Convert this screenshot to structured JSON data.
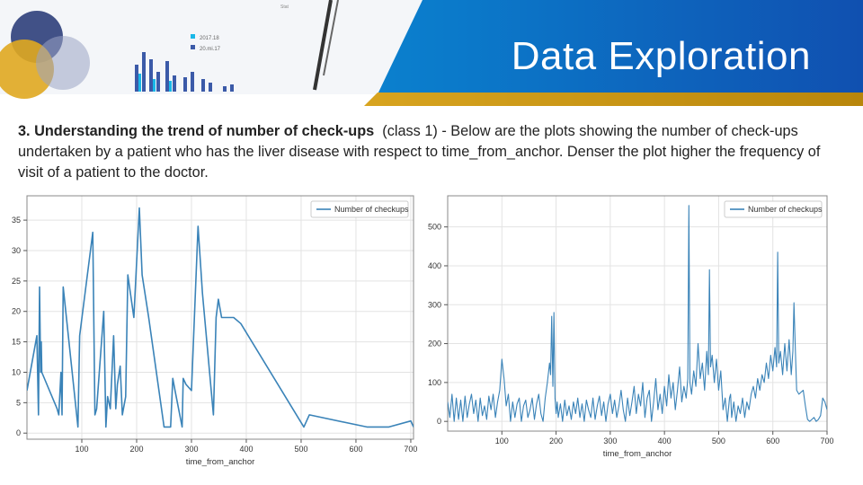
{
  "slide": {
    "title": "Data Exploration",
    "heading_bold": "3. Understanding the trend of number of check-ups",
    "heading_suffix": "(class 1)",
    "body": " - Below are the plots showing the number of check-ups undertaken by a patient who has the liver disease with respect to time_from_anchor. Denser the plot higher the frequency of visit of a patient to the doctor.",
    "deco_label_1": "2017.18",
    "deco_label_2": "20.mi.17",
    "deco_corner": "Stat"
  },
  "colors": {
    "line": "#3a83b8",
    "grid": "#e3e3e3",
    "axis": "#888888"
  },
  "chart_data": [
    {
      "type": "line",
      "xlabel": "time_from_anchor",
      "ylabel": "",
      "xlim": [
        0,
        705
      ],
      "ylim": [
        -1,
        39
      ],
      "xticks": [
        100,
        200,
        300,
        400,
        500,
        600,
        700
      ],
      "yticks": [
        0,
        5,
        10,
        15,
        20,
        25,
        30,
        35
      ],
      "grid": true,
      "legend_position": "top-right",
      "series": [
        {
          "name": "Number of checkups",
          "x": [
            0,
            18,
            21,
            23,
            25,
            26,
            27,
            55,
            58,
            62,
            64,
            66,
            93,
            96,
            120,
            124,
            127,
            140,
            144,
            147,
            152,
            158,
            162,
            165,
            170,
            174,
            180,
            184,
            195,
            205,
            210,
            222,
            250,
            262,
            266,
            270,
            283,
            285,
            290,
            300,
            312,
            320,
            340,
            345,
            349,
            355,
            365,
            377,
            390,
            505,
            515,
            620,
            660,
            700,
            705
          ],
          "y": [
            7,
            16,
            3,
            24,
            10,
            15,
            10,
            4,
            3,
            10,
            3,
            24,
            1,
            16,
            33,
            3,
            4,
            20,
            1,
            6,
            4,
            16,
            4,
            8,
            11,
            3,
            6,
            26,
            19,
            37,
            26,
            19,
            1,
            1,
            9,
            7,
            1,
            9,
            8,
            7,
            34,
            23,
            3,
            19,
            22,
            19,
            19,
            19,
            18,
            1,
            3,
            1,
            1,
            2,
            1
          ]
        }
      ]
    },
    {
      "type": "line",
      "xlabel": "time_from_anchor",
      "ylabel": "",
      "xlim": [
        0,
        700
      ],
      "ylim": [
        -25,
        580
      ],
      "xticks": [
        100,
        200,
        300,
        400,
        500,
        600,
        700
      ],
      "yticks": [
        0,
        100,
        200,
        300,
        400,
        500
      ],
      "grid": true,
      "legend_position": "top-right",
      "series": [
        {
          "name": "Number of checkups",
          "x": [
            0,
            4,
            8,
            12,
            16,
            20,
            24,
            28,
            32,
            36,
            40,
            44,
            48,
            52,
            56,
            60,
            64,
            68,
            72,
            76,
            80,
            84,
            88,
            92,
            96,
            100,
            104,
            108,
            112,
            116,
            120,
            124,
            128,
            132,
            136,
            140,
            144,
            148,
            152,
            156,
            160,
            164,
            168,
            172,
            176,
            180,
            184,
            188,
            190,
            192,
            194,
            196,
            198,
            200,
            202,
            204,
            208,
            212,
            216,
            220,
            224,
            228,
            232,
            236,
            240,
            244,
            248,
            252,
            256,
            260,
            264,
            268,
            272,
            276,
            280,
            284,
            288,
            292,
            296,
            300,
            304,
            308,
            312,
            316,
            320,
            324,
            328,
            332,
            336,
            340,
            344,
            348,
            352,
            356,
            360,
            364,
            368,
            372,
            376,
            380,
            384,
            388,
            392,
            396,
            400,
            404,
            408,
            412,
            416,
            420,
            424,
            428,
            432,
            436,
            440,
            443,
            445,
            447,
            450,
            454,
            458,
            462,
            466,
            470,
            474,
            478,
            481,
            483,
            485,
            488,
            492,
            496,
            500,
            504,
            508,
            512,
            516,
            520,
            522,
            524,
            528,
            532,
            536,
            540,
            544,
            548,
            552,
            556,
            560,
            564,
            568,
            572,
            576,
            580,
            584,
            588,
            592,
            596,
            600,
            604,
            607,
            609,
            611,
            614,
            618,
            622,
            626,
            630,
            634,
            637,
            639,
            641,
            644,
            648,
            652,
            656,
            660,
            664,
            668,
            672,
            676,
            680,
            684,
            688,
            692,
            696,
            700
          ],
          "y": [
            50,
            10,
            70,
            0,
            60,
            5,
            55,
            0,
            65,
            10,
            45,
            70,
            20,
            55,
            0,
            60,
            15,
            40,
            5,
            65,
            30,
            70,
            10,
            50,
            80,
            160,
            110,
            40,
            70,
            0,
            50,
            10,
            45,
            60,
            0,
            40,
            55,
            10,
            30,
            60,
            5,
            45,
            70,
            20,
            0,
            60,
            100,
            150,
            120,
            270,
            90,
            280,
            60,
            20,
            50,
            10,
            45,
            0,
            55,
            15,
            40,
            5,
            50,
            20,
            60,
            10,
            45,
            0,
            55,
            30,
            10,
            60,
            5,
            40,
            65,
            15,
            50,
            0,
            45,
            70,
            20,
            55,
            10,
            40,
            80,
            30,
            0,
            60,
            15,
            50,
            90,
            20,
            70,
            40,
            100,
            10,
            60,
            80,
            0,
            50,
            110,
            30,
            70,
            20,
            90,
            40,
            120,
            60,
            100,
            30,
            80,
            140,
            50,
            90,
            60,
            110,
            555,
            100,
            70,
            130,
            90,
            200,
            110,
            150,
            80,
            180,
            120,
            390,
            140,
            170,
            100,
            160,
            80,
            130,
            30,
            60,
            0,
            60,
            70,
            10,
            50,
            0,
            40,
            20,
            60,
            10,
            50,
            30,
            70,
            90,
            60,
            110,
            80,
            120,
            100,
            150,
            110,
            170,
            130,
            190,
            140,
            435,
            150,
            180,
            120,
            200,
            130,
            210,
            120,
            180,
            305,
            210,
            80,
            70,
            75,
            80,
            40,
            5,
            0,
            5,
            10,
            0,
            5,
            15,
            60,
            50,
            30
          ]
        }
      ]
    }
  ]
}
